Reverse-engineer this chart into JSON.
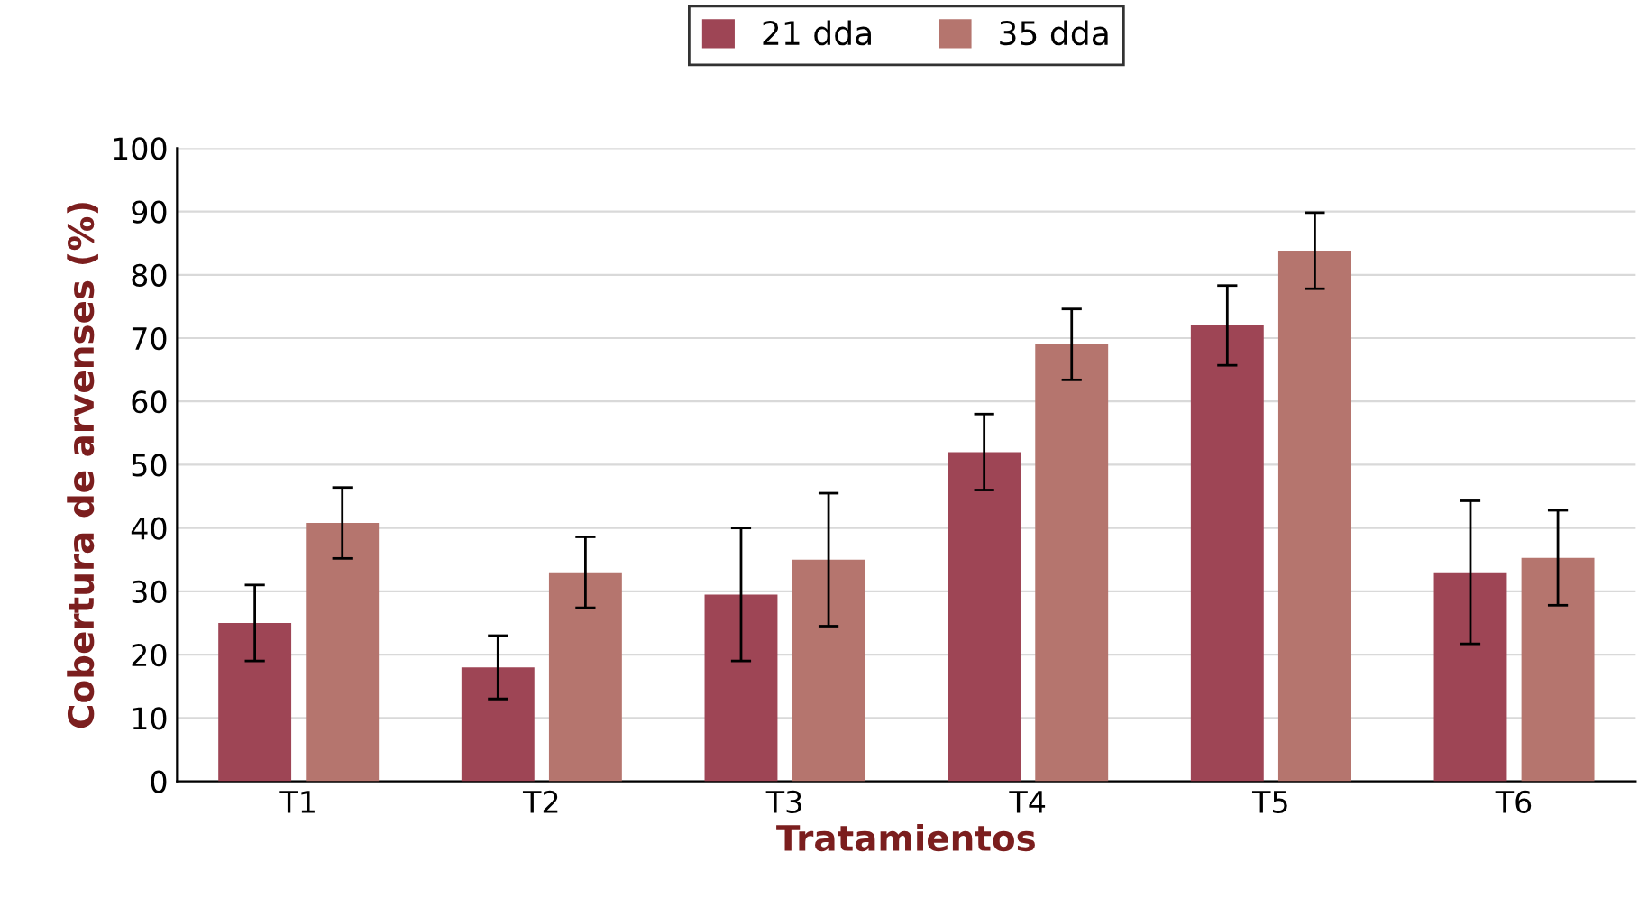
{
  "chart_data": {
    "type": "bar",
    "xlabel": "Tratamientos",
    "ylabel": "Cobertura de arvenses (%)",
    "categories": [
      "T1",
      "T2",
      "T3",
      "T4",
      "T5",
      "T6"
    ],
    "series": [
      {
        "name": "21 dda",
        "color": "#9e4555",
        "values": [
          25,
          18,
          29.5,
          52,
          72,
          33
        ],
        "errors": [
          6,
          5,
          10.5,
          6,
          6.3,
          11.3
        ]
      },
      {
        "name": "35 dda",
        "color": "#b5756e",
        "values": [
          40.8,
          33,
          35,
          69,
          83.8,
          35.3
        ],
        "errors": [
          5.6,
          5.6,
          10.5,
          5.6,
          6,
          7.5
        ]
      }
    ],
    "ylim": [
      0,
      100
    ],
    "yticks": [
      0,
      10,
      20,
      30,
      40,
      50,
      60,
      70,
      80,
      90,
      100
    ],
    "grid": "y",
    "legend": "top"
  }
}
